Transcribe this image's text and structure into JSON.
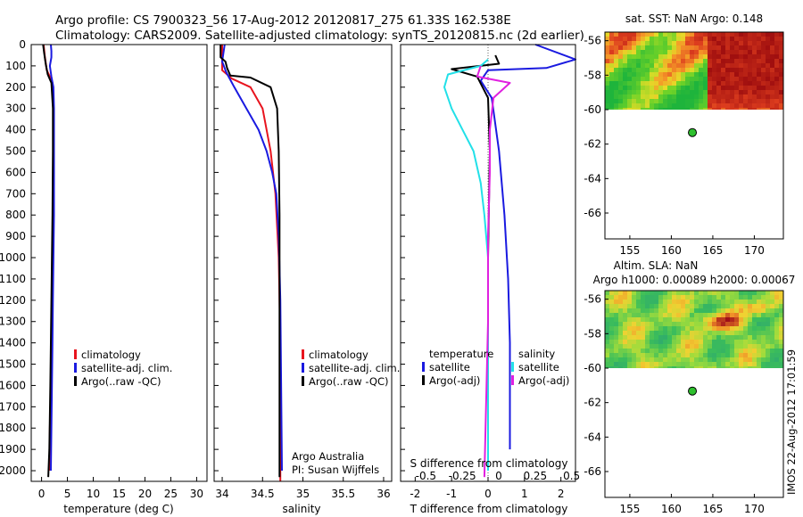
{
  "header": {
    "line1": "Argo profile: CS 7900323_56 17-Aug-2012 20120817_275 61.33S 162.538E",
    "line2": "Climatology: CARS2009. Satellite-adjusted climatology: synTS_20120815.nc (2d earlier)"
  },
  "credit": {
    "watermark": "IMOS 22-Aug-2012 17:01:59"
  },
  "colors": {
    "climatology": "#e8141e",
    "satellite": "#1a1ae0",
    "argo": "#000000",
    "satellite_salinity": "#22e0e8",
    "argo_salinity": "#e020e0",
    "float_marker": "#2ec02e"
  },
  "chart_data": [
    {
      "id": "temperature",
      "type": "line",
      "xlabel": "temperature (deg C)",
      "ylabel": "",
      "xlim": [
        -2,
        32
      ],
      "ylim": [
        2050,
        0
      ],
      "xticks": [
        0,
        5,
        10,
        15,
        20,
        25,
        30
      ],
      "yticks": [
        0,
        100,
        200,
        300,
        400,
        500,
        600,
        700,
        800,
        900,
        1000,
        1100,
        1200,
        1300,
        1400,
        1500,
        1600,
        1700,
        1800,
        1900,
        2000
      ],
      "legend_position": "lower-right",
      "series": [
        {
          "name": "climatology",
          "color": "#e8141e",
          "x": [
            0.4,
            0.6,
            1.0,
            1.7,
            2.1,
            2.3,
            2.3,
            2.2,
            2.1,
            2.0,
            1.9,
            1.8,
            1.6,
            1.5
          ],
          "y": [
            0,
            50,
            120,
            155,
            180,
            250,
            500,
            800,
            1000,
            1200,
            1400,
            1600,
            1800,
            2000
          ]
        },
        {
          "name": "satellite-adj. clim.",
          "color": "#1a1ae0",
          "x": [
            1.8,
            1.9,
            1.9,
            1.6,
            1.9,
            2.3,
            2.4,
            2.4,
            2.4,
            2.3,
            2.2,
            2.1,
            2.0,
            1.9,
            1.8
          ],
          "y": [
            0,
            30,
            60,
            100,
            150,
            200,
            300,
            500,
            800,
            1000,
            1200,
            1400,
            1600,
            1800,
            2000
          ]
        },
        {
          "name": "Argo(..raw -QC)",
          "color": "#000000",
          "x": [
            0.3,
            0.5,
            0.8,
            1.2,
            1.9,
            2.2,
            2.2,
            2.1,
            1.9,
            1.7,
            1.5,
            1.3
          ],
          "y": [
            0,
            40,
            90,
            140,
            180,
            300,
            500,
            800,
            1200,
            1600,
            1900,
            2030
          ]
        }
      ],
      "legend": [
        "climatology",
        "satellite-adj. clim.",
        "Argo(..raw -QC)"
      ]
    },
    {
      "id": "salinity",
      "type": "line",
      "xlabel": "salinity",
      "xlim": [
        33.9,
        36.1
      ],
      "ylim": [
        2050,
        0
      ],
      "xticks": [
        34,
        34.5,
        35,
        35.5,
        36
      ],
      "legend_position": "lower-right",
      "annotation": [
        "Argo Australia",
        "PI: Susan Wijffels"
      ],
      "series": [
        {
          "name": "climatology",
          "color": "#e8141e",
          "x": [
            34.0,
            34.0,
            34.12,
            34.35,
            34.5,
            34.6,
            34.66,
            34.7,
            34.72,
            34.72,
            34.72
          ],
          "y": [
            0,
            120,
            160,
            200,
            300,
            500,
            700,
            1000,
            1400,
            1800,
            2050
          ]
        },
        {
          "name": "satellite-adj. clim.",
          "color": "#1a1ae0",
          "x": [
            34.03,
            34.0,
            34.05,
            34.15,
            34.3,
            34.45,
            34.55,
            34.62,
            34.67,
            34.7,
            34.72,
            34.73,
            34.74
          ],
          "y": [
            0,
            80,
            130,
            200,
            300,
            400,
            500,
            600,
            700,
            900,
            1200,
            1600,
            2000
          ]
        },
        {
          "name": "Argo(..raw -QC)",
          "color": "#000000",
          "x": [
            33.98,
            33.98,
            34.04,
            34.06,
            34.1,
            34.35,
            34.6,
            34.68,
            34.7,
            34.71,
            34.71,
            34.71
          ],
          "y": [
            0,
            60,
            80,
            110,
            145,
            155,
            200,
            300,
            500,
            800,
            1400,
            2030
          ]
        }
      ],
      "legend": [
        "climatology",
        "satellite-adj. clim.",
        "Argo(..raw -QC)"
      ]
    },
    {
      "id": "difference",
      "type": "line",
      "xlabel": "T difference from climatology",
      "xlabel_top": "S difference from climatology",
      "xlim": [
        -2.4,
        2.4
      ],
      "ylim": [
        2050,
        0
      ],
      "xticks": [
        -2,
        -1,
        0,
        1,
        2
      ],
      "xticks_top": [
        "-0.5",
        "-0.25",
        "0",
        "0.25",
        "0.5"
      ],
      "legend_position": "lower-center",
      "legend_headers": [
        "temperature",
        "salinity"
      ],
      "series": [
        {
          "name": "satellite",
          "group": "temperature",
          "color": "#1a1ae0",
          "x": [
            1.3,
            2.4,
            1.6,
            0.0,
            -0.2,
            0.1,
            0.3,
            0.45,
            0.55,
            0.6,
            0.6,
            0.6
          ],
          "y": [
            0,
            70,
            110,
            120,
            170,
            250,
            500,
            800,
            1100,
            1400,
            1700,
            1900
          ]
        },
        {
          "name": "Argo(-adj)",
          "group": "temperature",
          "color": "#000000",
          "x": [
            0.2,
            0.3,
            -1.0,
            -0.3,
            0.0,
            0.05,
            0.0,
            0.0,
            0.0,
            0.0
          ],
          "y": [
            50,
            90,
            115,
            150,
            250,
            500,
            1000,
            1300,
            1700,
            2000
          ]
        },
        {
          "name": "satellite",
          "group": "salinity",
          "color": "#22e0e8",
          "x": [
            0.0,
            -0.2,
            -1.1,
            -1.2,
            -1.0,
            -0.7,
            -0.4,
            -0.2,
            -0.1,
            0.0,
            0.0
          ],
          "y": [
            70,
            100,
            140,
            200,
            300,
            400,
            500,
            650,
            800,
            1000,
            2000
          ]
        },
        {
          "name": "Argo(-adj)",
          "group": "salinity",
          "color": "#e020e0",
          "x": [
            -0.2,
            -0.3,
            0.6,
            0.15,
            0.05,
            0.05,
            0.0,
            0.0,
            -0.1
          ],
          "y": [
            100,
            150,
            180,
            250,
            400,
            600,
            900,
            1300,
            2030
          ]
        }
      ],
      "legend": [
        "satellite",
        "Argo(-adj)",
        "satellite",
        "Argo(-adj)"
      ]
    },
    {
      "id": "sst-map",
      "type": "heatmap",
      "title": "sat. SST: NaN Argo: 0.148",
      "xlim": [
        152,
        173.5
      ],
      "ylim": [
        -67.5,
        -55.5
      ],
      "xticks": [
        155,
        160,
        165,
        170
      ],
      "yticks": [
        -56,
        -58,
        -60,
        -62,
        -64,
        -66
      ],
      "data_extent_lat": [
        -55.5,
        -60
      ],
      "float_position": {
        "lon": 162.538,
        "lat": -61.33
      }
    },
    {
      "id": "sla-map",
      "type": "heatmap",
      "title": "Altim. SLA: NaN",
      "subtitle": "Argo h1000: 0.00089 h2000: 0.00067",
      "xlim": [
        152,
        173.5
      ],
      "ylim": [
        -67.5,
        -55.5
      ],
      "xticks": [
        155,
        160,
        165,
        170
      ],
      "yticks": [
        -56,
        -58,
        -60,
        -62,
        -64,
        -66
      ],
      "data_extent_lat": [
        -55.5,
        -60
      ],
      "float_position": {
        "lon": 162.538,
        "lat": -61.33
      }
    }
  ]
}
